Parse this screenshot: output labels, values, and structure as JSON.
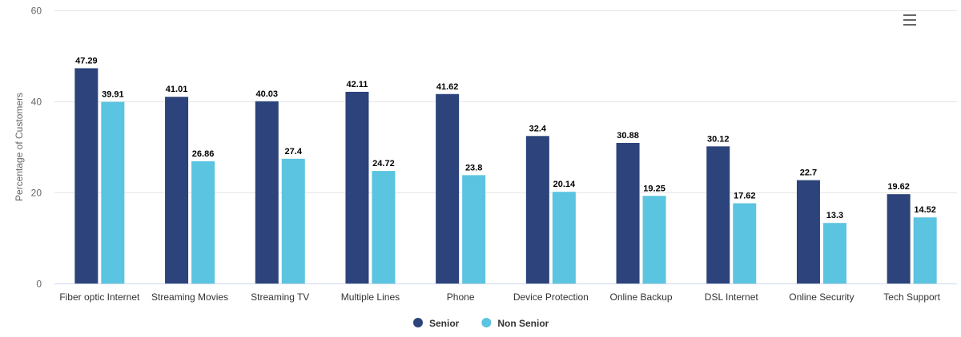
{
  "chart_data": {
    "type": "bar",
    "title": "",
    "xlabel": "",
    "ylabel": "Percentage of Customers",
    "ylim": [
      0,
      60
    ],
    "yticks": [
      0,
      20,
      40,
      60
    ],
    "grid": true,
    "legend_position": "bottom",
    "categories": [
      "Fiber optic Internet",
      "Streaming Movies",
      "Streaming TV",
      "Multiple Lines",
      "Phone",
      "Device Protection",
      "Online Backup",
      "DSL Internet",
      "Online Security",
      "Tech Support"
    ],
    "series": [
      {
        "name": "Senior",
        "color": "#2c437b",
        "values": [
          47.29,
          41.01,
          40.03,
          42.11,
          41.62,
          32.4,
          30.88,
          30.12,
          22.7,
          19.62
        ]
      },
      {
        "name": "Non Senior",
        "color": "#5bc4e0",
        "values": [
          39.91,
          26.86,
          27.4,
          24.72,
          23.8,
          20.14,
          19.25,
          17.62,
          13.3,
          14.52
        ]
      }
    ]
  },
  "menu": {
    "icon": "hamburger-menu-icon"
  }
}
